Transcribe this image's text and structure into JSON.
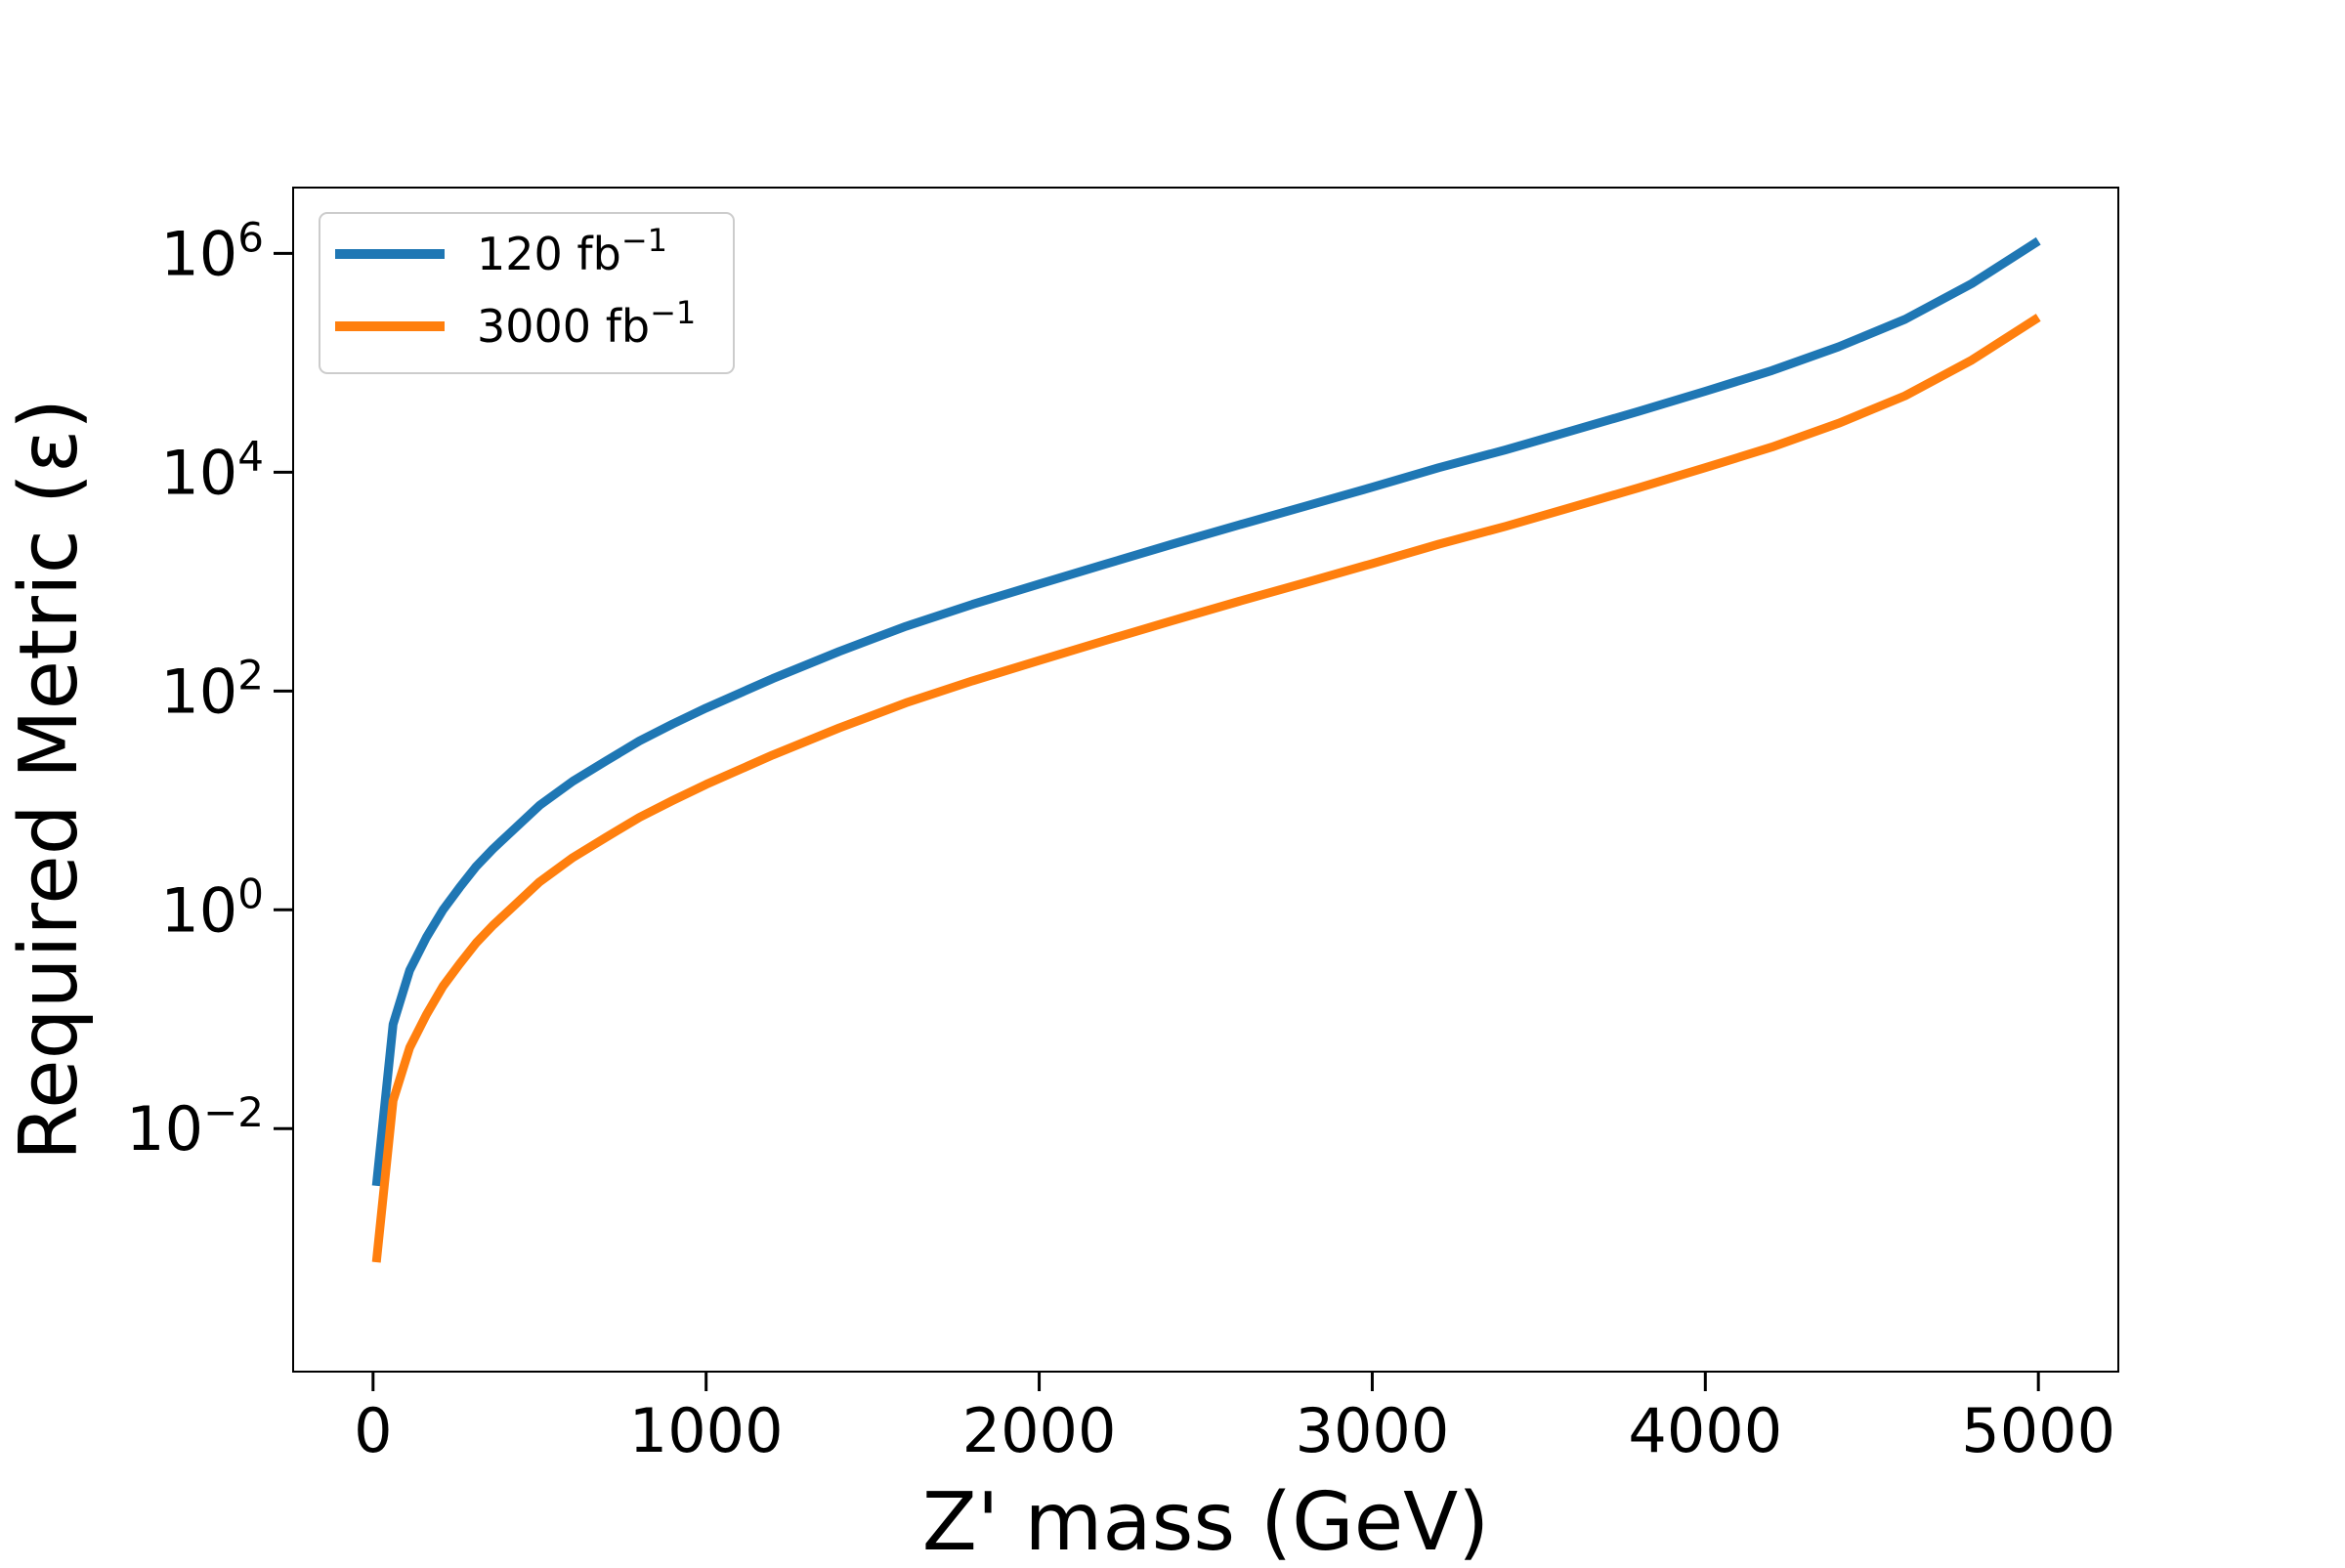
{
  "chart_data": {
    "type": "line",
    "title": "",
    "xlabel": "Z' mass (GeV)",
    "ylabel": "Required Metric (ε)",
    "yscale": "log",
    "xlim": [
      -240,
      5240
    ],
    "ylim": [
      6e-05,
      4000000
    ],
    "grid": false,
    "legend_position": "top-left",
    "x_ticks": [
      0,
      1000,
      2000,
      3000,
      4000,
      5000
    ],
    "x_tick_labels": [
      "0",
      "1000",
      "2000",
      "3000",
      "4000",
      "5000"
    ],
    "y_ticks": [
      {
        "value": 0.01,
        "base": "10",
        "exp": "−2"
      },
      {
        "value": 1,
        "base": "10",
        "exp": "0"
      },
      {
        "value": 100,
        "base": "10",
        "exp": "2"
      },
      {
        "value": 10000,
        "base": "10",
        "exp": "4"
      },
      {
        "value": 1000000,
        "base": "10",
        "exp": "6"
      }
    ],
    "series": [
      {
        "name": "120 fb",
        "name_sup": "−1",
        "color": "#1f77b4",
        "x": [
          10,
          60,
          110,
          160,
          210,
          260,
          310,
          360,
          410,
          500,
          600,
          700,
          800,
          900,
          1000,
          1200,
          1400,
          1600,
          1800,
          2000,
          2200,
          2400,
          2600,
          2800,
          3000,
          3200,
          3400,
          3600,
          3800,
          4000,
          4200,
          4400,
          4600,
          4800,
          5000
        ],
        "y": [
          0.003,
          0.09,
          0.28,
          0.56,
          1.0,
          1.6,
          2.5,
          3.6,
          5.0,
          9.0,
          15,
          23,
          35,
          50,
          70,
          130,
          230,
          390,
          620,
          950,
          1450,
          2200,
          3300,
          4900,
          7300,
          11000,
          16000,
          24000,
          36000,
          55000,
          85000,
          140000,
          250000,
          530000,
          1300000
        ]
      },
      {
        "name": "3000 fb",
        "name_sup": "−1",
        "color": "#ff7f0e",
        "x": [
          10,
          60,
          110,
          160,
          210,
          260,
          310,
          360,
          410,
          500,
          600,
          700,
          800,
          900,
          1000,
          1200,
          1400,
          1600,
          1800,
          2000,
          2200,
          2400,
          2600,
          2800,
          3000,
          3200,
          3400,
          3600,
          3800,
          4000,
          4200,
          4400,
          4600,
          4800,
          5000
        ],
        "y": [
          0.0006,
          0.018,
          0.055,
          0.11,
          0.2,
          0.32,
          0.5,
          0.72,
          1.0,
          1.8,
          3.0,
          4.6,
          7.0,
          10,
          14,
          26,
          46,
          78,
          124,
          190,
          290,
          440,
          660,
          980,
          1460,
          2200,
          3200,
          4800,
          7200,
          11000,
          17000,
          28000,
          50000,
          106000,
          260000
        ]
      }
    ]
  }
}
